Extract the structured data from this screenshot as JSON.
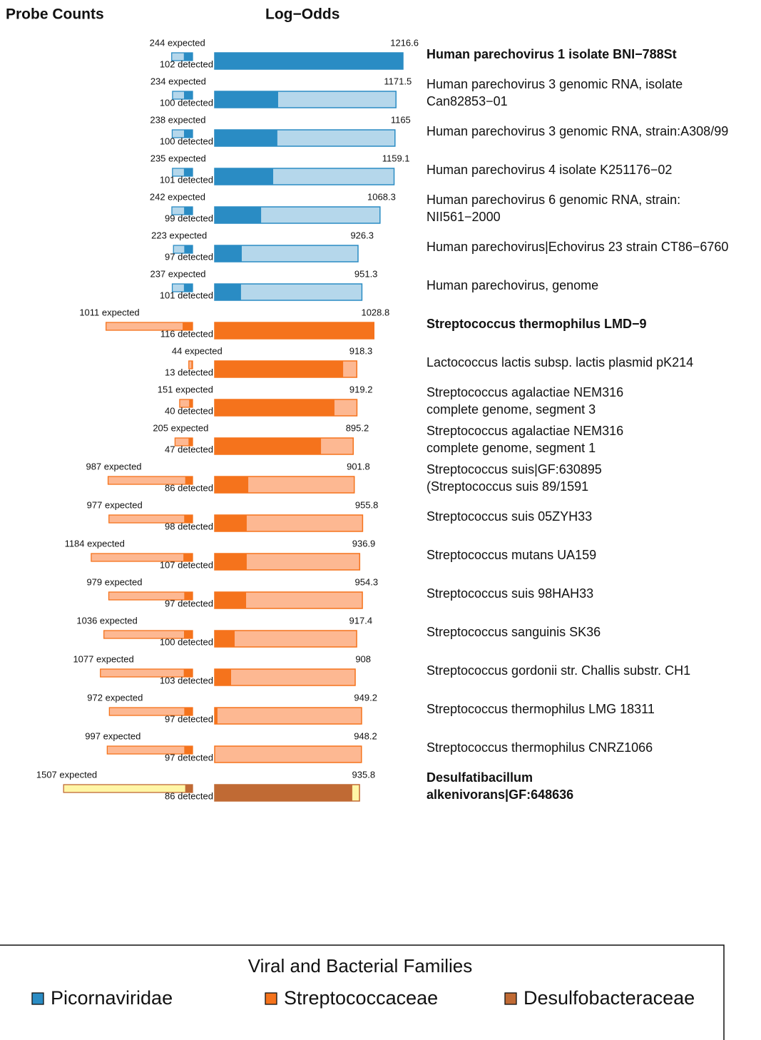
{
  "chart_data": {
    "type": "bar",
    "title": "Probe Counts",
    "subtitle": "Log−Odds",
    "highlight_color": "#e8341c",
    "families": [
      {
        "name": "Picornaviridae",
        "color": "#2a8cc4",
        "light": "#b5d7eb"
      },
      {
        "name": "Streptococcaceae",
        "color": "#f5731c",
        "light": "#fdb892"
      },
      {
        "name": "Desulfobacteraceae",
        "color": "#c06a34",
        "light": "#fff6a6"
      }
    ],
    "legend_title": "Viral and Bacterial Families",
    "rows": [
      {
        "label": [
          "Human parechovirus 1 isolate BNI−788St"
        ],
        "family": 0,
        "highlight": true,
        "expected": 244,
        "expected_label": "244 expected",
        "detected": 102,
        "detected_label": "102 detected",
        "log_odds": 1216.6,
        "dark": 1216.6
      },
      {
        "label": [
          "Human parechovirus 3 genomic RNA, isolate",
          "Can82853−01"
        ],
        "family": 0,
        "highlight": false,
        "expected": 234,
        "expected_label": "234 expected",
        "detected": 100,
        "detected_label": "100 detected",
        "log_odds": 1171.5,
        "dark": 410
      },
      {
        "label": [
          "Human parechovirus 3 genomic RNA, strain:A308/99"
        ],
        "family": 0,
        "highlight": false,
        "expected": 238,
        "expected_label": "238 expected",
        "detected": 100,
        "detected_label": "100 detected",
        "log_odds": 1165,
        "dark": 405
      },
      {
        "label": [
          "Human parechovirus 4 isolate K251176−02"
        ],
        "family": 0,
        "highlight": false,
        "expected": 235,
        "expected_label": "235 expected",
        "detected": 101,
        "detected_label": "101 detected",
        "log_odds": 1159.1,
        "dark": 378
      },
      {
        "label": [
          "Human parechovirus 6 genomic RNA, strain:",
          "NII561−2000"
        ],
        "family": 0,
        "highlight": false,
        "expected": 242,
        "expected_label": "242 expected",
        "detected": 99,
        "detected_label": "99 detected",
        "log_odds": 1068.3,
        "dark": 300
      },
      {
        "label": [
          "Human parechovirus|Echovirus 23 strain CT86−6760"
        ],
        "family": 0,
        "highlight": false,
        "expected": 223,
        "expected_label": "223 expected",
        "detected": 97,
        "detected_label": "97 detected",
        "log_odds": 926.3,
        "dark": 175
      },
      {
        "label": [
          "Human parechovirus, genome"
        ],
        "family": 0,
        "highlight": false,
        "expected": 237,
        "expected_label": "237 expected",
        "detected": 101,
        "detected_label": "101 detected",
        "log_odds": 951.3,
        "dark": 170
      },
      {
        "label": [
          "Streptococcus thermophilus LMD−9"
        ],
        "family": 1,
        "highlight": true,
        "expected": 1011,
        "expected_label": "1011 expected",
        "detected": 116,
        "detected_label": "116 detected",
        "log_odds": 1028.8,
        "dark": 1028.8
      },
      {
        "label": [
          "Lactococcus lactis subsp. lactis plasmid pK214"
        ],
        "family": 1,
        "highlight": false,
        "expected": 44,
        "expected_label": "44 expected",
        "detected": 13,
        "detected_label": "13 detected",
        "log_odds": 918.3,
        "dark": 830
      },
      {
        "label": [
          "Streptococcus agalactiae NEM316",
          "complete genome, segment 3"
        ],
        "family": 1,
        "highlight": false,
        "expected": 151,
        "expected_label": "151 expected",
        "detected": 40,
        "detected_label": "40 detected",
        "log_odds": 919.2,
        "dark": 774
      },
      {
        "label": [
          "Streptococcus agalactiae NEM316",
          "complete genome, segment 1"
        ],
        "family": 1,
        "highlight": false,
        "expected": 205,
        "expected_label": "205 expected",
        "detected": 47,
        "detected_label": "47 detected",
        "log_odds": 895.2,
        "dark": 687
      },
      {
        "label": [
          "Streptococcus suis|GF:630895",
          "(Streptococcus suis 89/1591"
        ],
        "family": 1,
        "highlight": false,
        "expected": 987,
        "expected_label": "987 expected",
        "detected": 86,
        "detected_label": "86 detected",
        "log_odds": 901.8,
        "dark": 217
      },
      {
        "label": [
          "Streptococcus suis 05ZYH33"
        ],
        "family": 1,
        "highlight": false,
        "expected": 977,
        "expected_label": "977 expected",
        "detected": 98,
        "detected_label": "98 detected",
        "log_odds": 955.8,
        "dark": 207
      },
      {
        "label": [
          "Streptococcus mutans UA159"
        ],
        "family": 1,
        "highlight": false,
        "expected": 1184,
        "expected_label": "1184 expected",
        "detected": 107,
        "detected_label": "107 detected",
        "log_odds": 936.9,
        "dark": 207
      },
      {
        "label": [
          "Streptococcus suis 98HAH33"
        ],
        "family": 1,
        "highlight": false,
        "expected": 979,
        "expected_label": "979 expected",
        "detected": 97,
        "detected_label": "97 detected",
        "log_odds": 954.3,
        "dark": 203
      },
      {
        "label": [
          "Streptococcus sanguinis SK36"
        ],
        "family": 1,
        "highlight": false,
        "expected": 1036,
        "expected_label": "1036 expected",
        "detected": 100,
        "detected_label": "100 detected",
        "log_odds": 917.4,
        "dark": 129
      },
      {
        "label": [
          "Streptococcus gordonii str. Challis substr. CH1"
        ],
        "family": 1,
        "highlight": false,
        "expected": 1077,
        "expected_label": "1077 expected",
        "detected": 103,
        "detected_label": "103 detected",
        "log_odds": 908,
        "dark": 106
      },
      {
        "label": [
          "Streptococcus thermophilus LMG 18311"
        ],
        "family": 1,
        "highlight": false,
        "expected": 972,
        "expected_label": "972 expected",
        "detected": 97,
        "detected_label": "97 detected",
        "log_odds": 949.2,
        "dark": 18
      },
      {
        "label": [
          "Streptococcus thermophilus CNRZ1066"
        ],
        "family": 1,
        "highlight": false,
        "expected": 997,
        "expected_label": "997 expected",
        "detected": 97,
        "detected_label": "97 detected",
        "log_odds": 948.2,
        "dark": 0
      },
      {
        "label": [
          "Desulfatibacillum",
          "alkenivorans|GF:648636"
        ],
        "family": 2,
        "highlight": true,
        "expected": 1507,
        "expected_label": "1507 expected",
        "detected": 86,
        "detected_label": "86 detected",
        "log_odds": 935.8,
        "dark": 889
      }
    ]
  }
}
